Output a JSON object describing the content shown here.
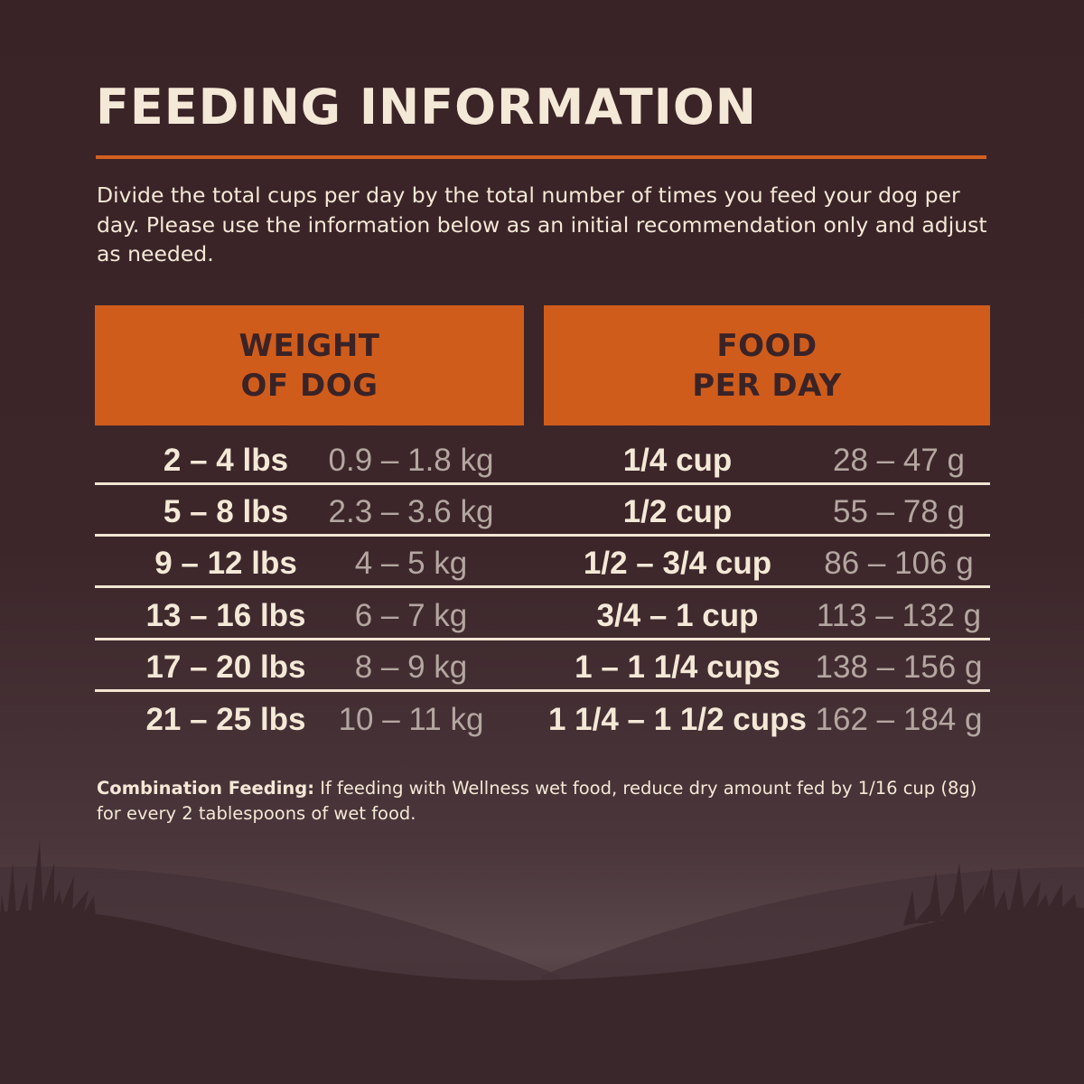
{
  "title": "FEEDING INFORMATION",
  "intro": "Divide the total cups per day by the total number of times you feed your dog per day. Please use the information below as an initial recommendation only and adjust as needed.",
  "table": {
    "headers": {
      "weight": [
        "WEIGHT",
        "OF DOG"
      ],
      "food": [
        "FOOD",
        "PER DAY"
      ]
    },
    "rows": [
      {
        "lbs": "2 – 4 lbs",
        "kg": "0.9 – 1.8 kg",
        "cups": "1/4 cup",
        "grams": "28 – 47 g"
      },
      {
        "lbs": "5 – 8 lbs",
        "kg": "2.3 – 3.6 kg",
        "cups": "1/2 cup",
        "grams": "55 – 78 g"
      },
      {
        "lbs": "9 – 12 lbs",
        "kg": "4 – 5 kg",
        "cups": "1/2 – 3/4 cup",
        "grams": "86 – 106 g"
      },
      {
        "lbs": "13 – 16 lbs",
        "kg": "6 – 7 kg",
        "cups": "3/4 – 1 cup",
        "grams": "113 – 132 g"
      },
      {
        "lbs": "17 – 20 lbs",
        "kg": "8 – 9 kg",
        "cups": "1 – 1 1/4 cups",
        "grams": "138 – 156 g"
      },
      {
        "lbs": "21 – 25 lbs",
        "kg": "10 – 11 kg",
        "cups": "1 1/4 – 1 1/2 cups",
        "grams": "162 – 184 g"
      }
    ]
  },
  "note": {
    "label": "Combination Feeding:",
    "text": " If feeding with Wellness wet food, reduce dry amount fed by 1/16 cup (8g) for every 2 tablespoons of wet food."
  },
  "colors": {
    "background": "#3a2327",
    "accent": "#d05c1b",
    "text": "#f4e8d6",
    "muted_text": "#b4a6a0"
  }
}
